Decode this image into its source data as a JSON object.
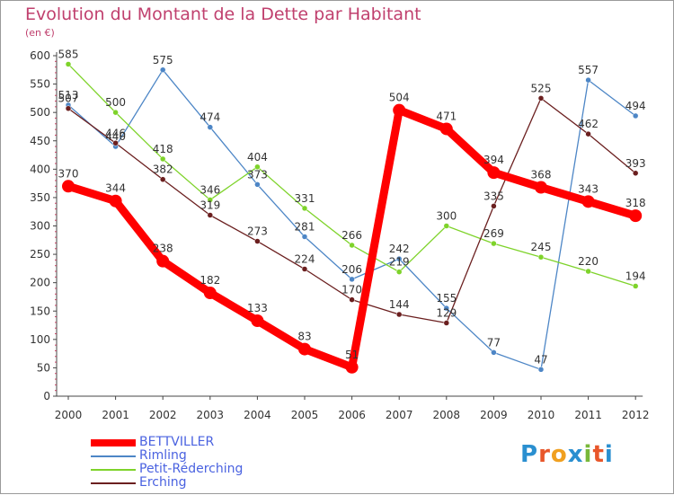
{
  "title": "Evolution du Montant de la Dette par Habitant",
  "unit_label": "(en €)",
  "logo": {
    "letters": [
      "P",
      "r",
      "o",
      "x",
      "i",
      "t",
      "i"
    ],
    "colors": [
      "#2a8fd0",
      "#e8562a",
      "#f0a020",
      "#2a8fd0",
      "#78b83a",
      "#e8562a",
      "#2a8fd0"
    ]
  },
  "chart_data": {
    "type": "line",
    "title": "Evolution du Montant de la Dette par Habitant",
    "ylabel": "(en €)",
    "ylim": [
      0,
      600
    ],
    "yticks": [
      0,
      50,
      100,
      150,
      200,
      250,
      300,
      350,
      400,
      450,
      500,
      550,
      600
    ],
    "x": [
      "2000",
      "2001",
      "2002",
      "2003",
      "2004",
      "2005",
      "2006",
      "2007",
      "2008",
      "2009",
      "2010",
      "2011",
      "2012"
    ],
    "grid": false,
    "legend_position": "bottom-left",
    "series": [
      {
        "name": "BETTVILLER",
        "color": "#ff0000",
        "values": [
          370,
          344,
          238,
          182,
          133,
          83,
          51,
          504,
          471,
          394,
          368,
          343,
          318
        ]
      },
      {
        "name": "Rimling",
        "color": "#4d86c6",
        "values": [
          513,
          440,
          575,
          474,
          373,
          281,
          206,
          242,
          155,
          77,
          47,
          557,
          494
        ]
      },
      {
        "name": "Petit-Réderching",
        "color": "#7ed32a",
        "values": [
          585,
          500,
          418,
          346,
          404,
          331,
          266,
          219,
          300,
          269,
          245,
          220,
          194
        ]
      },
      {
        "name": "Erching",
        "color": "#6b1f1f",
        "values": [
          507,
          446,
          382,
          319,
          273,
          224,
          170,
          144,
          129,
          335,
          525,
          462,
          393
        ]
      }
    ]
  }
}
